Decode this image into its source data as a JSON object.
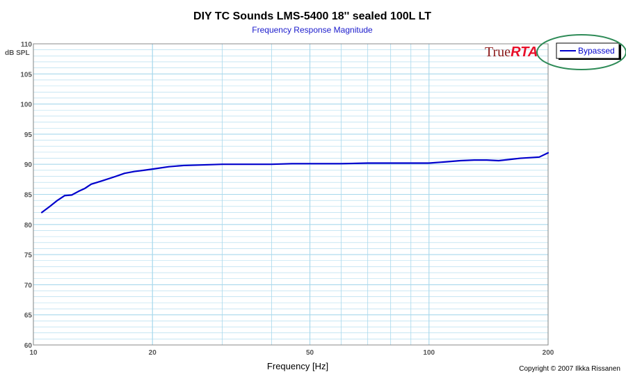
{
  "chart_data": {
    "type": "line",
    "title": "DIY TC Sounds LMS-5400 18'' sealed 100L LT",
    "subtitle": "Frequency Response Magnitude",
    "xlabel": "Frequency [Hz]",
    "ylabel": "dB SPL",
    "xscale": "log",
    "xlim": [
      10,
      200
    ],
    "ylim": [
      60,
      110
    ],
    "x_ticks": [
      10,
      20,
      50,
      100,
      200
    ],
    "y_ticks": [
      60,
      65,
      70,
      75,
      80,
      85,
      90,
      95,
      100,
      105,
      110
    ],
    "grid": true,
    "legend_position": "top-right",
    "series": [
      {
        "name": "Bypassed",
        "color": "#0000cc",
        "x": [
          10.5,
          11,
          11.5,
          12,
          12.5,
          13,
          13.5,
          14,
          14.5,
          15,
          16,
          17,
          18,
          19,
          20,
          22,
          24,
          27,
          30,
          35,
          40,
          45,
          50,
          60,
          70,
          80,
          90,
          100,
          110,
          120,
          130,
          140,
          150,
          160,
          170,
          180,
          190,
          200
        ],
        "values": [
          82.0,
          83.0,
          84.0,
          84.8,
          84.9,
          85.5,
          86.0,
          86.7,
          87.0,
          87.3,
          87.9,
          88.5,
          88.8,
          89.0,
          89.2,
          89.6,
          89.8,
          89.9,
          90.0,
          90.0,
          90.0,
          90.1,
          90.1,
          90.1,
          90.2,
          90.2,
          90.2,
          90.2,
          90.4,
          90.6,
          90.7,
          90.7,
          90.6,
          90.8,
          91.0,
          91.1,
          91.2,
          91.9
        ]
      }
    ]
  },
  "branding": {
    "logo_true": "True",
    "logo_rta": "RTA",
    "copyright": "Copyright © 2007 Ilkka Rissanen"
  },
  "colors": {
    "grid": "#a8d8ec",
    "axis": "#888888",
    "annotation_ellipse": "#2e8b57"
  }
}
